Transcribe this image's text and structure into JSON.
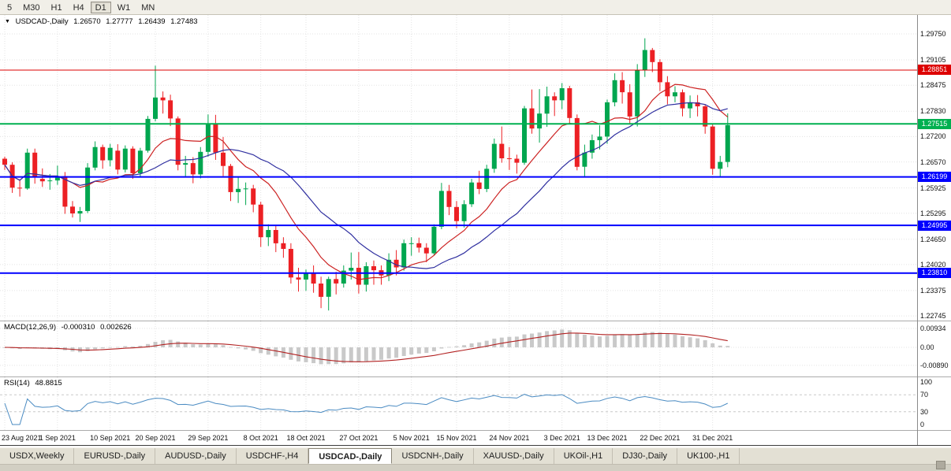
{
  "toolbar": {
    "timeframes": [
      "5",
      "M30",
      "H1",
      "H4",
      "D1",
      "W1",
      "MN"
    ],
    "active_timeframe": "D1"
  },
  "chart_header": {
    "expand_icon": "▼",
    "symbol": "USDCAD-,Daily",
    "open": "1.26570",
    "high": "1.27777",
    "low": "1.26439",
    "close": "1.27483"
  },
  "chart_data": {
    "type": "candlestick",
    "title": "USDCAD-,Daily",
    "price_axis_ticks": [
      "1.29750",
      "1.29105",
      "1.28475",
      "1.27830",
      "1.27200",
      "1.26570",
      "1.25925",
      "1.25295",
      "1.24650",
      "1.24020",
      "1.23375",
      "1.22745"
    ],
    "price_range": [
      1.2263,
      1.3022
    ],
    "hlines": [
      {
        "price": 1.28851,
        "label": "1.28851",
        "color": "#dd0000",
        "width": 1
      },
      {
        "price": 1.27515,
        "label": "1.27515",
        "color": "#00b050",
        "width": 2
      },
      {
        "price": 1.26199,
        "label": "1.26199",
        "color": "#0000ff",
        "width": 2
      },
      {
        "price": 1.24995,
        "label": "1.24995",
        "color": "#0000ff",
        "width": 2
      },
      {
        "price": 1.2381,
        "label": "1.23810",
        "color": "#0000ff",
        "width": 2
      }
    ],
    "date_ticks": [
      {
        "label": "23 Aug 2021",
        "i": 0
      },
      {
        "label": "1 Sep 2021",
        "i": 7
      },
      {
        "label": "10 Sep 2021",
        "i": 14
      },
      {
        "label": "20 Sep 2021",
        "i": 20
      },
      {
        "label": "29 Sep 2021",
        "i": 27
      },
      {
        "label": "8 Oct 2021",
        "i": 34
      },
      {
        "label": "18 Oct 2021",
        "i": 40
      },
      {
        "label": "27 Oct 2021",
        "i": 47
      },
      {
        "label": "5 Nov 2021",
        "i": 54
      },
      {
        "label": "15 Nov 2021",
        "i": 60
      },
      {
        "label": "24 Nov 2021",
        "i": 67
      },
      {
        "label": "3 Dec 2021",
        "i": 74
      },
      {
        "label": "13 Dec 2021",
        "i": 80
      },
      {
        "label": "22 Dec 2021",
        "i": 87
      },
      {
        "label": "31 Dec 2021",
        "i": 94
      }
    ],
    "candles_ohlc": [
      [
        1.2665,
        1.267,
        1.2637,
        1.265
      ],
      [
        1.265,
        1.2656,
        1.258,
        1.2593
      ],
      [
        1.2593,
        1.2614,
        1.2571,
        1.2591
      ],
      [
        1.2591,
        1.269,
        1.2588,
        1.268
      ],
      [
        1.268,
        1.269,
        1.2603,
        1.262
      ],
      [
        1.2615,
        1.2641,
        1.2595,
        1.2609
      ],
      [
        1.2609,
        1.2627,
        1.2588,
        1.2611
      ],
      [
        1.2611,
        1.2648,
        1.26,
        1.2622
      ],
      [
        1.2622,
        1.2632,
        1.2528,
        1.2546
      ],
      [
        1.2546,
        1.256,
        1.2519,
        1.2529
      ],
      [
        1.2529,
        1.2545,
        1.2508,
        1.2535
      ],
      [
        1.2535,
        1.2654,
        1.253,
        1.2643
      ],
      [
        1.2643,
        1.2708,
        1.2636,
        1.2694
      ],
      [
        1.2694,
        1.27,
        1.264,
        1.2661
      ],
      [
        1.2661,
        1.2702,
        1.2646,
        1.2692
      ],
      [
        1.2685,
        1.2701,
        1.2626,
        1.2638
      ],
      [
        1.2638,
        1.2698,
        1.2631,
        1.269
      ],
      [
        1.269,
        1.2696,
        1.2615,
        1.2629
      ],
      [
        1.2629,
        1.2692,
        1.262,
        1.2685
      ],
      [
        1.2685,
        1.2771,
        1.268,
        1.2764
      ],
      [
        1.2764,
        1.2896,
        1.2758,
        1.2817
      ],
      [
        1.2817,
        1.2832,
        1.2777,
        1.281
      ],
      [
        1.281,
        1.2824,
        1.2746,
        1.2765
      ],
      [
        1.2765,
        1.277,
        1.2636,
        1.265
      ],
      [
        1.265,
        1.2672,
        1.262,
        1.2654
      ],
      [
        1.2654,
        1.2669,
        1.2604,
        1.2626
      ],
      [
        1.2626,
        1.2694,
        1.2616,
        1.2682
      ],
      [
        1.2682,
        1.2775,
        1.267,
        1.2751
      ],
      [
        1.2751,
        1.2774,
        1.2662,
        1.268
      ],
      [
        1.268,
        1.2719,
        1.2622,
        1.2647
      ],
      [
        1.2647,
        1.2652,
        1.256,
        1.2582
      ],
      [
        1.2582,
        1.2619,
        1.2555,
        1.259
      ],
      [
        1.259,
        1.2606,
        1.255,
        1.2591
      ],
      [
        1.2591,
        1.26,
        1.2532,
        1.2551
      ],
      [
        1.2551,
        1.2558,
        1.2446,
        1.247
      ],
      [
        1.247,
        1.2502,
        1.2448,
        1.2488
      ],
      [
        1.2488,
        1.25,
        1.2433,
        1.2455
      ],
      [
        1.2455,
        1.247,
        1.2419,
        1.2441
      ],
      [
        1.2441,
        1.2455,
        1.2355,
        1.237
      ],
      [
        1.237,
        1.2394,
        1.2335,
        1.2365
      ],
      [
        1.2365,
        1.239,
        1.2337,
        1.2381
      ],
      [
        1.2381,
        1.24,
        1.2332,
        1.2355
      ],
      [
        1.2355,
        1.2372,
        1.2294,
        1.2322
      ],
      [
        1.2322,
        1.2372,
        1.2288,
        1.2366
      ],
      [
        1.2366,
        1.2384,
        1.2328,
        1.2355
      ],
      [
        1.2355,
        1.24,
        1.2345,
        1.2387
      ],
      [
        1.2387,
        1.2432,
        1.2365,
        1.2394
      ],
      [
        1.2394,
        1.2433,
        1.233,
        1.2352
      ],
      [
        1.2352,
        1.2408,
        1.2335,
        1.2398
      ],
      [
        1.2398,
        1.2412,
        1.2352,
        1.2388
      ],
      [
        1.2388,
        1.24,
        1.2352,
        1.2375
      ],
      [
        1.2375,
        1.243,
        1.2361,
        1.2414
      ],
      [
        1.2414,
        1.2438,
        1.2375,
        1.2395
      ],
      [
        1.2395,
        1.2464,
        1.2387,
        1.2455
      ],
      [
        1.2455,
        1.247,
        1.2424,
        1.2455
      ],
      [
        1.2455,
        1.2469,
        1.2432,
        1.2444
      ],
      [
        1.2444,
        1.2455,
        1.2408,
        1.243
      ],
      [
        1.243,
        1.2502,
        1.2425,
        1.2496
      ],
      [
        1.2496,
        1.2605,
        1.249,
        1.2585
      ],
      [
        1.2585,
        1.26,
        1.2525,
        1.2545
      ],
      [
        1.2545,
        1.256,
        1.2492,
        1.251
      ],
      [
        1.251,
        1.2562,
        1.2494,
        1.2552
      ],
      [
        1.2552,
        1.2615,
        1.2545,
        1.2606
      ],
      [
        1.2606,
        1.2635,
        1.2577,
        1.259
      ],
      [
        1.259,
        1.265,
        1.2582,
        1.264
      ],
      [
        1.264,
        1.2715,
        1.263,
        1.2702
      ],
      [
        1.2702,
        1.2745,
        1.2655,
        1.2666
      ],
      [
        1.2666,
        1.2694,
        1.2637,
        1.2665
      ],
      [
        1.2665,
        1.2675,
        1.2628,
        1.2655
      ],
      [
        1.2655,
        1.2796,
        1.265,
        1.279
      ],
      [
        1.279,
        1.2837,
        1.2727,
        1.274
      ],
      [
        1.274,
        1.2838,
        1.2705,
        1.2777
      ],
      [
        1.2777,
        1.2844,
        1.2744,
        1.282
      ],
      [
        1.282,
        1.283,
        1.2771,
        1.281
      ],
      [
        1.281,
        1.2853,
        1.2788,
        1.284
      ],
      [
        1.284,
        1.2846,
        1.2752,
        1.2766
      ],
      [
        1.2766,
        1.2775,
        1.2636,
        1.2645
      ],
      [
        1.2645,
        1.27,
        1.262,
        1.268
      ],
      [
        1.268,
        1.2725,
        1.2665,
        1.2711
      ],
      [
        1.2711,
        1.2748,
        1.2688,
        1.272
      ],
      [
        1.272,
        1.2812,
        1.2702,
        1.2805
      ],
      [
        1.2805,
        1.2877,
        1.2795,
        1.286
      ],
      [
        1.286,
        1.288,
        1.2802,
        1.283
      ],
      [
        1.283,
        1.285,
        1.275,
        1.277
      ],
      [
        1.277,
        1.29,
        1.2745,
        1.2886
      ],
      [
        1.2886,
        1.2964,
        1.2868,
        1.2935
      ],
      [
        1.2935,
        1.294,
        1.288,
        1.2905
      ],
      [
        1.2905,
        1.2912,
        1.2833,
        1.2855
      ],
      [
        1.2855,
        1.287,
        1.28,
        1.282
      ],
      [
        1.282,
        1.2845,
        1.2805,
        1.283
      ],
      [
        1.283,
        1.2837,
        1.277,
        1.279
      ],
      [
        1.279,
        1.2822,
        1.2766,
        1.2805
      ],
      [
        1.2805,
        1.2823,
        1.277,
        1.2795
      ],
      [
        1.2795,
        1.28,
        1.2727,
        1.2745
      ],
      [
        1.2745,
        1.2752,
        1.2625,
        1.264
      ],
      [
        1.264,
        1.2672,
        1.262,
        1.2657
      ],
      [
        1.2657,
        1.27777,
        1.26439,
        1.27483
      ]
    ],
    "colors": {
      "up": "#00a64f",
      "down": "#ec2024",
      "ma_fast": "#cc2222",
      "ma_slow": "#3030a0",
      "macd_hist": "#c9c9c9",
      "macd_signal": "#b22222",
      "rsi": "#4a8bc2"
    },
    "indicators": {
      "macd": {
        "label": "MACD(12,26,9)",
        "values_text": [
          "-0.000310",
          "0.002626"
        ],
        "axis_ticks": [
          "0.00934",
          "0.00",
          "-0.00890"
        ]
      },
      "rsi": {
        "label": "RSI(14)",
        "value_text": "48.8815",
        "axis_ticks": [
          "100",
          "70",
          "30",
          "0"
        ],
        "levels": [
          70,
          30
        ]
      }
    }
  },
  "tabs": {
    "items": [
      "USDX,Weekly",
      "EURUSD-,Daily",
      "AUDUSD-,Daily",
      "USDCHF-,H4",
      "USDCAD-,Daily",
      "USDCNH-,Daily",
      "XAUUSD-,Daily",
      "UKOil-,H1",
      "DJ30-,Daily",
      "UK100-,H1"
    ],
    "active_index": 4
  }
}
